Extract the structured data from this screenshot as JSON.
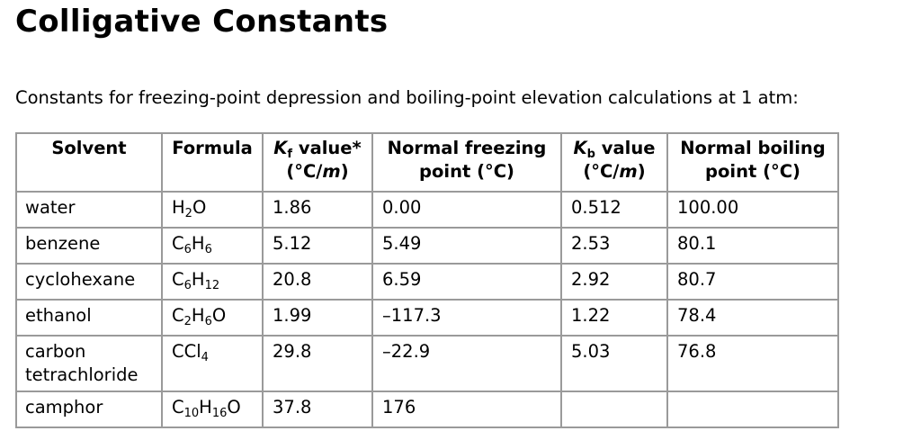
{
  "title": "Colligative Constants",
  "intro": "Constants for freezing-point depression and boiling-point elevation calculations at 1 atm:",
  "table": {
    "headers": [
      {
        "parts": [
          {
            "t": "Solvent"
          }
        ]
      },
      {
        "parts": [
          {
            "t": "Formula"
          }
        ]
      },
      {
        "parts": [
          {
            "i": "K"
          },
          {
            "s": "f"
          },
          {
            "t": " value*"
          },
          {
            "br": true
          },
          {
            "t": "(°C/"
          },
          {
            "i": "m"
          },
          {
            "t": ")"
          }
        ]
      },
      {
        "parts": [
          {
            "t": "Normal freezing"
          },
          {
            "br": true
          },
          {
            "t": "point (°C)"
          }
        ]
      },
      {
        "parts": [
          {
            "i": "K"
          },
          {
            "s": "b"
          },
          {
            "t": " value"
          },
          {
            "br": true
          },
          {
            "t": "(°C/"
          },
          {
            "i": "m"
          },
          {
            "t": ")"
          }
        ]
      },
      {
        "parts": [
          {
            "t": "Normal boiling"
          },
          {
            "br": true
          },
          {
            "t": "point (°C)"
          }
        ]
      }
    ],
    "rows": [
      {
        "solvent": "water",
        "formula": [
          {
            "t": "H"
          },
          {
            "s": "2"
          },
          {
            "t": "O"
          }
        ],
        "kf": "1.86",
        "fp": "0.00",
        "kb": "0.512",
        "bp": "100.00"
      },
      {
        "solvent": "benzene",
        "formula": [
          {
            "t": "C"
          },
          {
            "s": "6"
          },
          {
            "t": "H"
          },
          {
            "s": "6"
          }
        ],
        "kf": "5.12",
        "fp": "5.49",
        "kb": "2.53",
        "bp": "80.1"
      },
      {
        "solvent": "cyclohexane",
        "formula": [
          {
            "t": "C"
          },
          {
            "s": "6"
          },
          {
            "t": "H"
          },
          {
            "s": "12"
          }
        ],
        "kf": "20.8",
        "fp": "6.59",
        "kb": "2.92",
        "bp": "80.7"
      },
      {
        "solvent": "ethanol",
        "formula": [
          {
            "t": "C"
          },
          {
            "s": "2"
          },
          {
            "t": "H"
          },
          {
            "s": "6"
          },
          {
            "t": "O"
          }
        ],
        "kf": "1.99",
        "fp": "–117.3",
        "kb": "1.22",
        "bp": "78.4"
      },
      {
        "solvent": "carbon tetrachloride",
        "formula": [
          {
            "t": "CCl"
          },
          {
            "s": "4"
          }
        ],
        "kf": "29.8",
        "fp": "–22.9",
        "kb": "5.03",
        "bp": "76.8"
      },
      {
        "solvent": "camphor",
        "formula": [
          {
            "t": "C"
          },
          {
            "s": "10"
          },
          {
            "t": "H"
          },
          {
            "s": "16"
          },
          {
            "t": "O"
          }
        ],
        "kf": "37.8",
        "fp": "176",
        "kb": "",
        "bp": ""
      }
    ]
  }
}
